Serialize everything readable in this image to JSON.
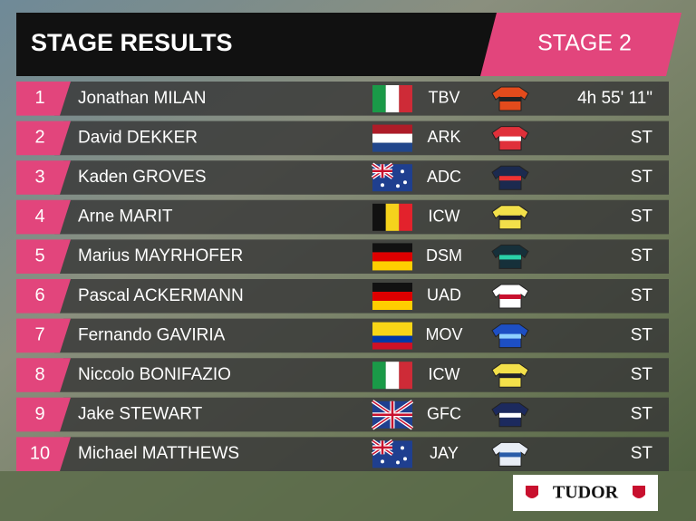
{
  "header": {
    "title": "STAGE RESULTS",
    "stage": "STAGE 2"
  },
  "results": [
    {
      "rank": "1",
      "name": "Jonathan MILAN",
      "team": "TBV",
      "time": "4h 55' 11\""
    },
    {
      "rank": "2",
      "name": "David DEKKER",
      "team": "ARK",
      "time": "ST"
    },
    {
      "rank": "3",
      "name": "Kaden GROVES",
      "team": "ADC",
      "time": "ST"
    },
    {
      "rank": "4",
      "name": "Arne MARIT",
      "team": "ICW",
      "time": "ST"
    },
    {
      "rank": "5",
      "name": "Marius MAYRHOFER",
      "team": "DSM",
      "time": "ST"
    },
    {
      "rank": "6",
      "name": "Pascal ACKERMANN",
      "team": "UAD",
      "time": "ST"
    },
    {
      "rank": "7",
      "name": "Fernando GAVIRIA",
      "team": "MOV",
      "time": "ST"
    },
    {
      "rank": "8",
      "name": "Niccolo BONIFAZIO",
      "team": "ICW",
      "time": "ST"
    },
    {
      "rank": "9",
      "name": "Jake STEWART",
      "team": "GFC",
      "time": "ST"
    },
    {
      "rank": "10",
      "name": "Michael MATTHEWS",
      "team": "JAY",
      "time": "ST"
    }
  ],
  "sponsor": "TUDOR"
}
